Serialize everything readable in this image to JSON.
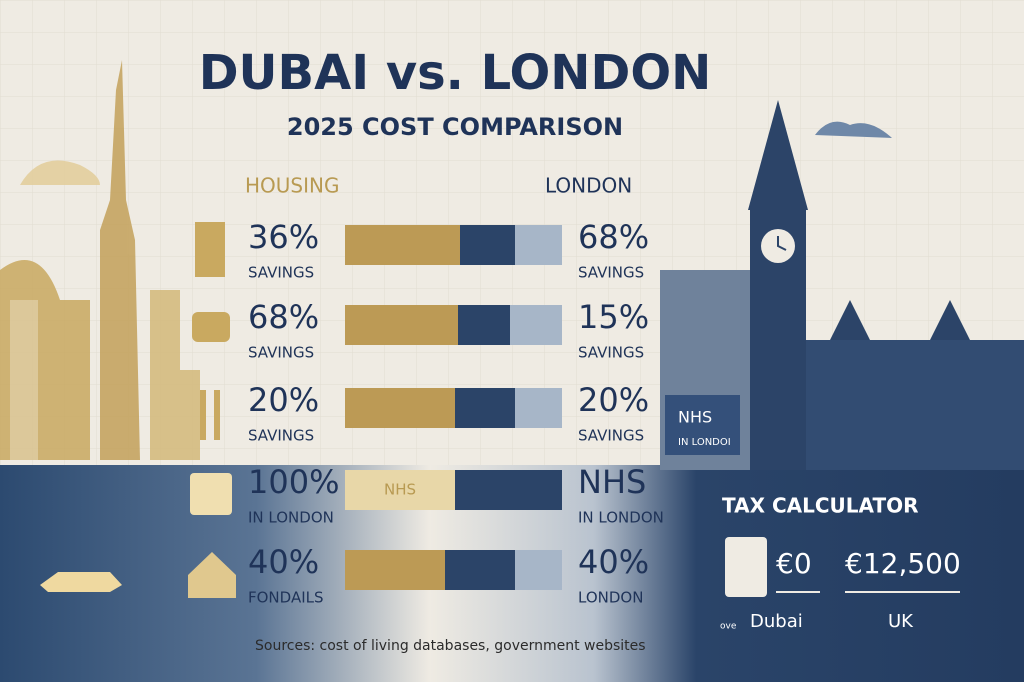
{
  "header": {
    "title": "DUBAI vs. LONDON",
    "subtitle": "2025 COST COMPARISON"
  },
  "columns": {
    "left": "HOUSING",
    "right": "LONDON"
  },
  "rows": [
    {
      "left_value": "36%",
      "left_label": "SAVINGS",
      "right_value": "68%",
      "right_label": "SAVINGS"
    },
    {
      "left_value": "68%",
      "left_label": "SAVINGS",
      "right_value": "15%",
      "right_label": "SAVINGS"
    },
    {
      "left_value": "20%",
      "left_label": "SAVINGS",
      "right_value": "20%",
      "right_label": "SAVINGS"
    },
    {
      "left_value": "100%",
      "left_label": "IN LONDON",
      "bar_label": "NHS",
      "right_value": "NHS",
      "right_label": "IN LONDON"
    },
    {
      "left_value": "40%",
      "left_label": "FONDAILS",
      "right_value": "40%",
      "right_label": "LONDON"
    }
  ],
  "sign": {
    "title": "NHS",
    "text": "IN LONDOI"
  },
  "tax": {
    "title": "TAX CALCULATOR",
    "dubai_value": "€0",
    "uk_value": "€12,500",
    "dubai_label": "Dubai",
    "uk_label": "UK",
    "note": "ove"
  },
  "footer": "Sources: cost of living databases, government websites"
}
